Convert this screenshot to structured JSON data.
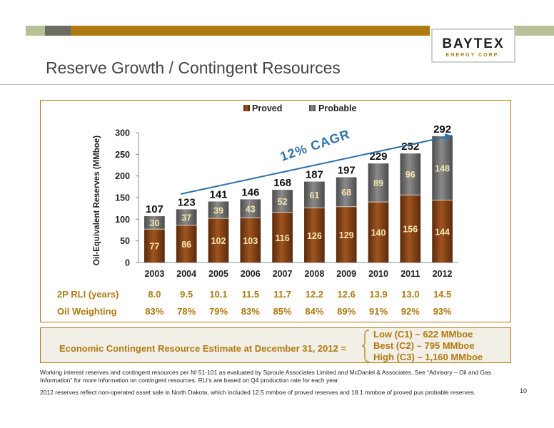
{
  "page": {
    "title": "Reserve Growth / Contingent Resources",
    "page_number": "10",
    "logo": {
      "main": "BAYTEX",
      "sub": "ENERGY CORP."
    },
    "colors": {
      "accent": "#b07a10",
      "proved": "#7a3a12",
      "probable": "#6a6a6a",
      "cagr": "#2f72a8"
    }
  },
  "chart_data": {
    "type": "bar",
    "stacked": true,
    "categories": [
      "2003",
      "2004",
      "2005",
      "2006",
      "2007",
      "2008",
      "2009",
      "2010",
      "2011",
      "2012"
    ],
    "series": [
      {
        "name": "Proved",
        "values": [
          77,
          86,
          102,
          103,
          116,
          126,
          129,
          140,
          156,
          144
        ]
      },
      {
        "name": "Probable",
        "values": [
          30,
          37,
          39,
          43,
          52,
          61,
          68,
          89,
          96,
          148
        ]
      }
    ],
    "totals": [
      107,
      123,
      141,
      146,
      168,
      187,
      197,
      229,
      252,
      292
    ],
    "ylabel": "Oil-Equivalent Reserves (MMboe)",
    "ylim": [
      0,
      300
    ],
    "yticks": [
      0,
      50,
      100,
      150,
      200,
      250,
      300
    ],
    "legend_position": "top-center",
    "annotation": "12% CAGR"
  },
  "table": {
    "rows": [
      {
        "label": "2P RLI (years)",
        "values": [
          "8.0",
          "9.5",
          "10.1",
          "11.5",
          "11.7",
          "12.2",
          "12.6",
          "13.9",
          "13.0",
          "14.5"
        ]
      },
      {
        "label": "Oil Weighting",
        "values": [
          "83%",
          "78%",
          "79%",
          "83%",
          "85%",
          "84%",
          "89%",
          "91%",
          "92%",
          "93%"
        ]
      }
    ]
  },
  "contingent": {
    "label": "Economic Contingent Resource Estimate at December 31, 2012 =",
    "estimates": [
      "Low (C1) – 622 MMboe",
      "Best (C2) – 795 MMboe",
      "High (C3) – 1,160 MMboe"
    ]
  },
  "footnotes": [
    "Working interest reserves and contingent resources per NI 51-101 as evaluated by Sproule Associates Limited and McDaniel & Associates. See “Advisory – Oil and Gas Information” for more information on contingent resources. RLI’s are based on Q4 production rate for each year.",
    "2012 reserves reflect non-operated asset sale in North Dakota, which included 12.5 mmboe of proved reserves and 18.1 mmboe of proved pus probable reserves."
  ]
}
